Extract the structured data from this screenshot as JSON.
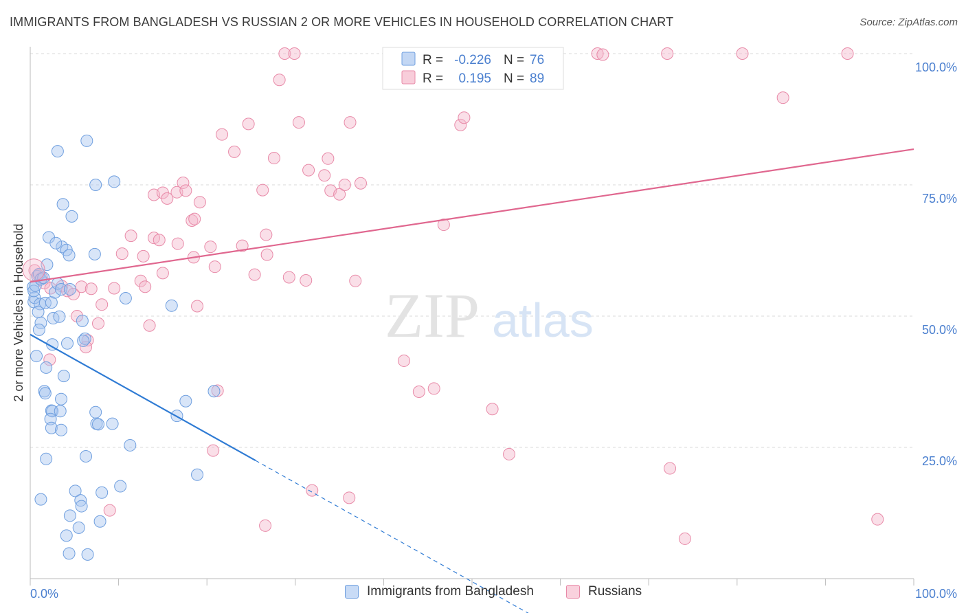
{
  "title": "IMMIGRANTS FROM BANGLADESH VS RUSSIAN 2 OR MORE VEHICLES IN HOUSEHOLD CORRELATION CHART",
  "source": "Source: ZipAtlas.com",
  "watermark": {
    "zip": "ZIP",
    "atlas": "atlas"
  },
  "colors": {
    "blue_fill": "#a9c6f0",
    "blue_stroke": "#6f9fdf",
    "blue_line": "#2f7bd4",
    "pink_fill": "#f5b8cb",
    "pink_stroke": "#e88aa8",
    "pink_line": "#e0678f",
    "axis_label": "#4a7fcf",
    "grid": "#d9d9d9"
  },
  "legend": {
    "r_label": "R =",
    "n_label": "N =",
    "rows": [
      {
        "r": "-0.226",
        "n": "76"
      },
      {
        "r": "0.195",
        "n": "89"
      }
    ]
  },
  "chart_data": {
    "type": "scatter",
    "title": "IMMIGRANTS FROM BANGLADESH VS RUSSIAN 2 OR MORE VEHICLES IN HOUSEHOLD CORRELATION CHART",
    "xlabel": "",
    "ylabel": "2 or more Vehicles in Household",
    "xlim": [
      0,
      100
    ],
    "ylim": [
      0,
      100
    ],
    "x_tick_labels": [
      "0.0%",
      "100.0%"
    ],
    "y_tick_labels": [
      "100.0%",
      "75.0%",
      "50.0%",
      "25.0%"
    ],
    "y_ticks": [
      100,
      75,
      50,
      25
    ],
    "grid": true,
    "legend_position": "bottom",
    "series": [
      {
        "name": "Immigrants from Bangladesh",
        "r": -0.226,
        "n": 76,
        "trend": {
          "x0": 0,
          "y0": 46.5,
          "x1": 25.5,
          "y1": 22.5,
          "dash_to_x": 60,
          "dash_to_y": -10
        },
        "points": [
          [
            0.3,
            55.5
          ],
          [
            0.4,
            52.7
          ],
          [
            0.5,
            53.5
          ],
          [
            0.4,
            54.8
          ],
          [
            0.6,
            55.8
          ],
          [
            0.8,
            57.6
          ],
          [
            1.0,
            58.0
          ],
          [
            1.2,
            57.0
          ],
          [
            1.5,
            57.3
          ],
          [
            1.1,
            52.3
          ],
          [
            0.9,
            50.8
          ],
          [
            1.2,
            48.7
          ],
          [
            1.0,
            47.4
          ],
          [
            1.7,
            52.5
          ],
          [
            1.9,
            59.8
          ],
          [
            2.1,
            65.0
          ],
          [
            2.4,
            52.6
          ],
          [
            2.6,
            49.6
          ],
          [
            2.8,
            54.5
          ],
          [
            3.1,
            56.2
          ],
          [
            3.3,
            49.9
          ],
          [
            3.5,
            55.1
          ],
          [
            3.6,
            63.2
          ],
          [
            2.9,
            63.9
          ],
          [
            3.7,
            71.3
          ],
          [
            3.1,
            81.4
          ],
          [
            4.1,
            62.6
          ],
          [
            4.4,
            61.6
          ],
          [
            4.5,
            55.1
          ],
          [
            4.7,
            69.0
          ],
          [
            6.4,
            83.4
          ],
          [
            7.4,
            75.0
          ],
          [
            9.5,
            75.6
          ],
          [
            7.3,
            61.8
          ],
          [
            10.8,
            53.4
          ],
          [
            16.0,
            52.0
          ],
          [
            5.9,
            49.1
          ],
          [
            6.2,
            45.7
          ],
          [
            6.0,
            45.3
          ],
          [
            4.2,
            44.8
          ],
          [
            2.5,
            44.6
          ],
          [
            0.7,
            42.4
          ],
          [
            1.8,
            40.2
          ],
          [
            3.8,
            38.6
          ],
          [
            1.6,
            35.7
          ],
          [
            1.7,
            35.3
          ],
          [
            3.5,
            34.2
          ],
          [
            2.4,
            32.0
          ],
          [
            2.5,
            31.9
          ],
          [
            3.4,
            31.9
          ],
          [
            2.3,
            30.4
          ],
          [
            2.4,
            28.7
          ],
          [
            3.5,
            28.3
          ],
          [
            7.4,
            31.7
          ],
          [
            7.5,
            29.5
          ],
          [
            7.7,
            29.4
          ],
          [
            9.3,
            29.5
          ],
          [
            17.6,
            33.8
          ],
          [
            20.8,
            35.7
          ],
          [
            16.6,
            31.0
          ],
          [
            11.3,
            25.4
          ],
          [
            1.8,
            22.8
          ],
          [
            6.3,
            23.3
          ],
          [
            18.9,
            19.8
          ],
          [
            10.2,
            17.6
          ],
          [
            8.1,
            16.4
          ],
          [
            5.1,
            16.7
          ],
          [
            5.7,
            14.9
          ],
          [
            5.8,
            13.8
          ],
          [
            1.2,
            15.1
          ],
          [
            4.5,
            12.0
          ],
          [
            5.5,
            9.7
          ],
          [
            7.9,
            10.9
          ],
          [
            4.1,
            8.2
          ],
          [
            4.4,
            4.8
          ],
          [
            6.5,
            4.6
          ]
        ]
      },
      {
        "name": "Russians",
        "r": 0.195,
        "n": 89,
        "trend": {
          "x0": 0,
          "y0": 56.5,
          "x1": 100,
          "y1": 81.8
        },
        "points": [
          [
            0.5,
            58.7
          ],
          [
            0.9,
            57.8
          ],
          [
            1.3,
            57.3
          ],
          [
            1.6,
            56.3
          ],
          [
            2.3,
            55.3
          ],
          [
            3.6,
            55.7
          ],
          [
            4.2,
            54.8
          ],
          [
            4.9,
            54.2
          ],
          [
            5.8,
            55.6
          ],
          [
            6.9,
            55.2
          ],
          [
            2.2,
            41.7
          ],
          [
            5.3,
            50.0
          ],
          [
            6.5,
            45.4
          ],
          [
            6.3,
            44.1
          ],
          [
            7.7,
            48.6
          ],
          [
            8.1,
            52.2
          ],
          [
            9.5,
            55.3
          ],
          [
            11.4,
            65.3
          ],
          [
            10.4,
            61.9
          ],
          [
            12.5,
            56.7
          ],
          [
            13.0,
            55.6
          ],
          [
            12.8,
            61.4
          ],
          [
            14.0,
            64.9
          ],
          [
            14.6,
            64.5
          ],
          [
            14.0,
            73.1
          ],
          [
            15.0,
            73.5
          ],
          [
            15.5,
            72.4
          ],
          [
            16.6,
            73.6
          ],
          [
            16.7,
            63.8
          ],
          [
            17.3,
            75.4
          ],
          [
            18.3,
            68.2
          ],
          [
            17.6,
            73.9
          ],
          [
            18.5,
            61.2
          ],
          [
            18.9,
            51.9
          ],
          [
            18.6,
            68.5
          ],
          [
            19.2,
            71.7
          ],
          [
            20.4,
            63.2
          ],
          [
            21.7,
            84.6
          ],
          [
            23.1,
            81.3
          ],
          [
            20.9,
            59.4
          ],
          [
            24.0,
            63.4
          ],
          [
            24.7,
            86.6
          ],
          [
            25.4,
            57.9
          ],
          [
            26.3,
            74.0
          ],
          [
            26.7,
            65.5
          ],
          [
            26.8,
            61.7
          ],
          [
            27.6,
            80.1
          ],
          [
            28.2,
            95.0
          ],
          [
            29.3,
            57.4
          ],
          [
            30.4,
            86.9
          ],
          [
            31.2,
            56.8
          ],
          [
            31.5,
            77.8
          ],
          [
            33.3,
            76.8
          ],
          [
            33.7,
            80.0
          ],
          [
            34.0,
            73.9
          ],
          [
            35.0,
            73.2
          ],
          [
            35.6,
            75.0
          ],
          [
            36.2,
            86.9
          ],
          [
            36.8,
            56.7
          ],
          [
            37.4,
            75.3
          ],
          [
            28.8,
            100.0
          ],
          [
            29.9,
            100.0
          ],
          [
            42.3,
            41.5
          ],
          [
            44.0,
            35.6
          ],
          [
            45.7,
            36.2
          ],
          [
            46.8,
            67.4
          ],
          [
            48.7,
            86.4
          ],
          [
            49.1,
            87.8
          ],
          [
            52.3,
            32.3
          ],
          [
            54.2,
            23.7
          ],
          [
            59.0,
            100.0
          ],
          [
            56.3,
            100.0
          ],
          [
            64.2,
            100.0
          ],
          [
            64.8,
            99.8
          ],
          [
            72.1,
            100.0
          ],
          [
            72.4,
            21.0
          ],
          [
            74.1,
            7.6
          ],
          [
            80.6,
            100.0
          ],
          [
            85.2,
            91.6
          ],
          [
            92.5,
            100.0
          ],
          [
            95.9,
            11.3
          ],
          [
            9.0,
            13.0
          ],
          [
            13.5,
            48.2
          ],
          [
            15.0,
            58.2
          ],
          [
            20.7,
            24.4
          ],
          [
            21.2,
            35.8
          ],
          [
            26.6,
            10.1
          ],
          [
            31.9,
            16.8
          ],
          [
            36.1,
            15.4
          ]
        ]
      }
    ]
  },
  "bottom_legend": [
    "Immigrants from Bangladesh",
    "Russians"
  ]
}
